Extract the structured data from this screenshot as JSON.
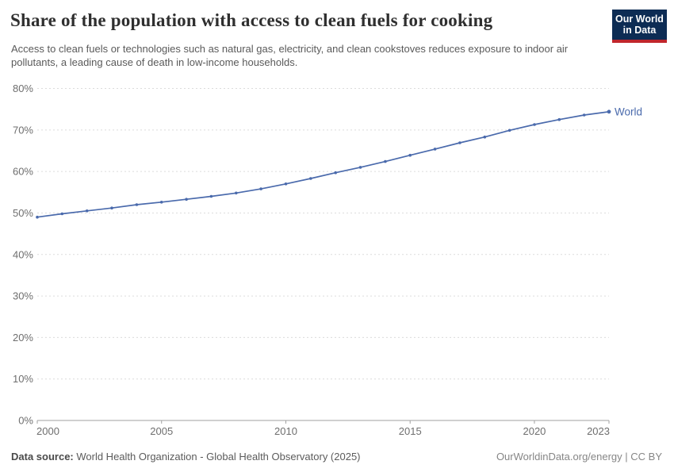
{
  "header": {
    "title": "Share of the population with access to clean fuels for cooking",
    "subtitle": "Access to clean fuels or technologies such as natural gas, electricity, and clean cookstoves reduces exposure to indoor air pollutants, a leading cause of death in low-income households.",
    "logo": {
      "line1": "Our World",
      "line2": "in Data"
    }
  },
  "colors": {
    "series_blue": "#4a6aac",
    "logo_bg": "#0d2c54",
    "logo_accent": "#c0262c",
    "grid": "#dcdcdc",
    "axis": "#a1a1a1",
    "tick_label": "#6e6e6e"
  },
  "chart_data": {
    "type": "line",
    "title": "Share of the population with access to clean fuels for cooking",
    "xlabel": "",
    "ylabel": "",
    "x": [
      2000,
      2001,
      2002,
      2003,
      2004,
      2005,
      2006,
      2007,
      2008,
      2009,
      2010,
      2011,
      2012,
      2013,
      2014,
      2015,
      2016,
      2017,
      2018,
      2019,
      2020,
      2021,
      2022,
      2023
    ],
    "series": [
      {
        "name": "World",
        "color": "#4a6aac",
        "values": [
          49.0,
          49.8,
          50.5,
          51.2,
          52.0,
          52.6,
          53.3,
          54.0,
          54.8,
          55.8,
          57.0,
          58.3,
          59.7,
          61.0,
          62.4,
          63.9,
          65.4,
          66.9,
          68.3,
          69.9,
          71.3,
          72.5,
          73.6,
          74.4
        ]
      }
    ],
    "ylim": [
      0,
      80
    ],
    "ytick_values": [
      0,
      10,
      20,
      30,
      40,
      50,
      60,
      70,
      80
    ],
    "ytick_format": "{v}%",
    "xticks": [
      2000,
      2005,
      2010,
      2015,
      2020,
      2023
    ],
    "grid": "horizontal-dashed",
    "legend": "end-of-line-label"
  },
  "footer": {
    "source_label": "Data source:",
    "source_text": " World Health Organization - Global Health Observatory (2025)",
    "right_text": "OurWorldinData.org/energy | CC BY"
  }
}
